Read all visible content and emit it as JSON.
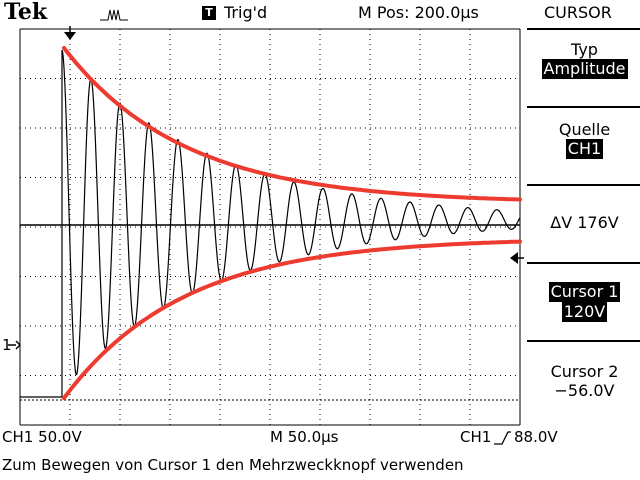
{
  "header": {
    "brand": "Tek",
    "trigger_icon_letter": "T",
    "trigger_status": "Trig'd",
    "m_pos": "M Pos: 200.0µs",
    "menu_title": "CURSOR"
  },
  "side_menu": {
    "typ_label": "Typ",
    "typ_value": "Amplitude",
    "quelle_label": "Quelle",
    "quelle_value": "CH1",
    "delta_v": "ΔV 176V",
    "cursor1_label": "Cursor 1",
    "cursor1_value": "120V",
    "cursor2_label": "Cursor 2",
    "cursor2_value": "−56.0V"
  },
  "status_bar": {
    "ch1_scale": "CH1  50.0V",
    "timebase": "M 50.0µs",
    "trigger_channel": "CH1",
    "trigger_level": "88.0V"
  },
  "ground_marker": "1",
  "footer_message": "Zum Bewegen von Cursor 1 den Mehrzweckknopf verwenden",
  "colors": {
    "envelope": "#ee3b30",
    "trace": "#000000",
    "grid": "#000000"
  },
  "waveform": {
    "type": "damped-oscillation",
    "vertical_scale_V_per_div": 50.0,
    "timebase_us_per_div": 50.0,
    "cursor1_V": 120,
    "cursor2_V": -56.0
  }
}
